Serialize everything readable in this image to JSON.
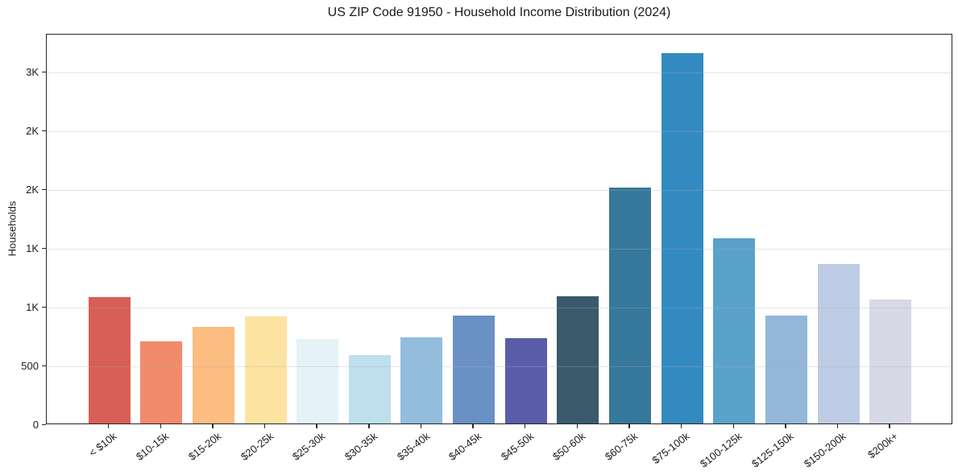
{
  "chart_data": {
    "type": "bar",
    "title": "US ZIP Code 91950 - Household Income Distribution (2024)",
    "xlabel": "",
    "ylabel": "Households",
    "categories": [
      "< $10k",
      "$10-15k",
      "$15-20k",
      "$20-25k",
      "$25-30k",
      "$30-35k",
      "$35-40k",
      "$40-45k",
      "$45-50k",
      "$50-60k",
      "$60-75k",
      "$75-100k",
      "$100-125k",
      "$125-150k",
      "$150-200k",
      "$200k+"
    ],
    "values": [
      1075,
      700,
      825,
      910,
      720,
      580,
      730,
      918,
      725,
      1085,
      2010,
      3150,
      1575,
      915,
      1360,
      1055
    ],
    "bar_colors": [
      "#d75f55",
      "#f28a6c",
      "#fcbd80",
      "#fde3a2",
      "#e5f2f8",
      "#bedfee",
      "#92bddc",
      "#6a91c3",
      "#5b5dab",
      "#3a5a6c",
      "#36789b",
      "#338ac1",
      "#59a2c9",
      "#92b7d9",
      "#becbe4",
      "#d7d9e7"
    ],
    "ylim": [
      0,
      3323
    ],
    "yticks": [
      {
        "value": 0,
        "label": "0"
      },
      {
        "value": 500,
        "label": "500"
      },
      {
        "value": 1000,
        "label": "1K"
      },
      {
        "value": 1500,
        "label": "1K"
      },
      {
        "value": 2000,
        "label": "2K"
      },
      {
        "value": 2500,
        "label": "2K"
      },
      {
        "value": 3000,
        "label": "3K"
      }
    ],
    "grid": "horizontal-light",
    "legend_position": "none",
    "colors": {
      "background": "#ffffff",
      "gridline": "#e9e9e9",
      "spine": "#262626",
      "text": "#1a1a1a"
    }
  }
}
